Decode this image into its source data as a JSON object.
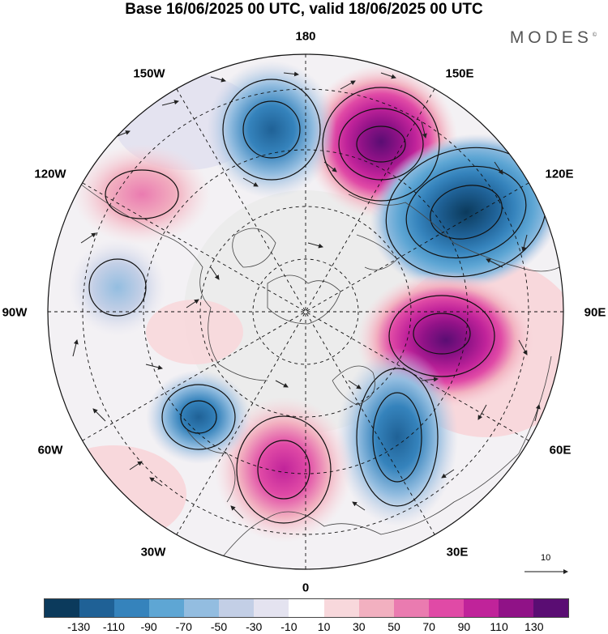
{
  "title": "Base 16/06/2025 00 UTC, valid 18/06/2025 00 UTC",
  "brand": "MODES",
  "brand_mark": "©",
  "longitude_labels": {
    "lon_180": "180",
    "lon_150e": "150E",
    "lon_120e": "120E",
    "lon_90e": "90E",
    "lon_60e": "60E",
    "lon_30e": "30E",
    "lon_0": "0",
    "lon_30w": "30W",
    "lon_60w": "60W",
    "lon_90w": "90W",
    "lon_120w": "120W",
    "lon_150w": "150W"
  },
  "reference_vector": {
    "value": "10"
  },
  "colorbar": {
    "colors": [
      "#0b3a5c",
      "#1f6196",
      "#3583bc",
      "#5ea6d4",
      "#93bde0",
      "#c3cfe6",
      "#e4e3f0",
      "#ffffff",
      "#f8d8dc",
      "#f2b0c0",
      "#ea7bb0",
      "#e04aa6",
      "#c0239a",
      "#901287",
      "#5a0d73"
    ],
    "tick_labels": [
      "-130",
      "-110",
      "-90",
      "-70",
      "-50",
      "-30",
      "-10",
      "10",
      "30",
      "50",
      "70",
      "90",
      "110",
      "130"
    ]
  },
  "map_features": {
    "projection": "north-polar-stereographic",
    "field_units": "geopotential height anomaly",
    "anomaly_centers": [
      {
        "name": "positive-anomaly-east-siberia",
        "value": 130
      },
      {
        "name": "negative-anomaly-east-asia",
        "value": -110
      },
      {
        "name": "positive-anomaly-central-siberia",
        "value": 130
      },
      {
        "name": "negative-anomaly-eastern-europe",
        "value": -90
      },
      {
        "name": "positive-anomaly-western-europe",
        "value": 90
      },
      {
        "name": "negative-anomaly-north-atlantic",
        "value": -70
      },
      {
        "name": "negative-anomaly-hudson-bay",
        "value": -30
      },
      {
        "name": "positive-anomaly-western-canada",
        "value": 70
      },
      {
        "name": "negative-anomaly-north-pacific",
        "value": -70
      }
    ]
  }
}
